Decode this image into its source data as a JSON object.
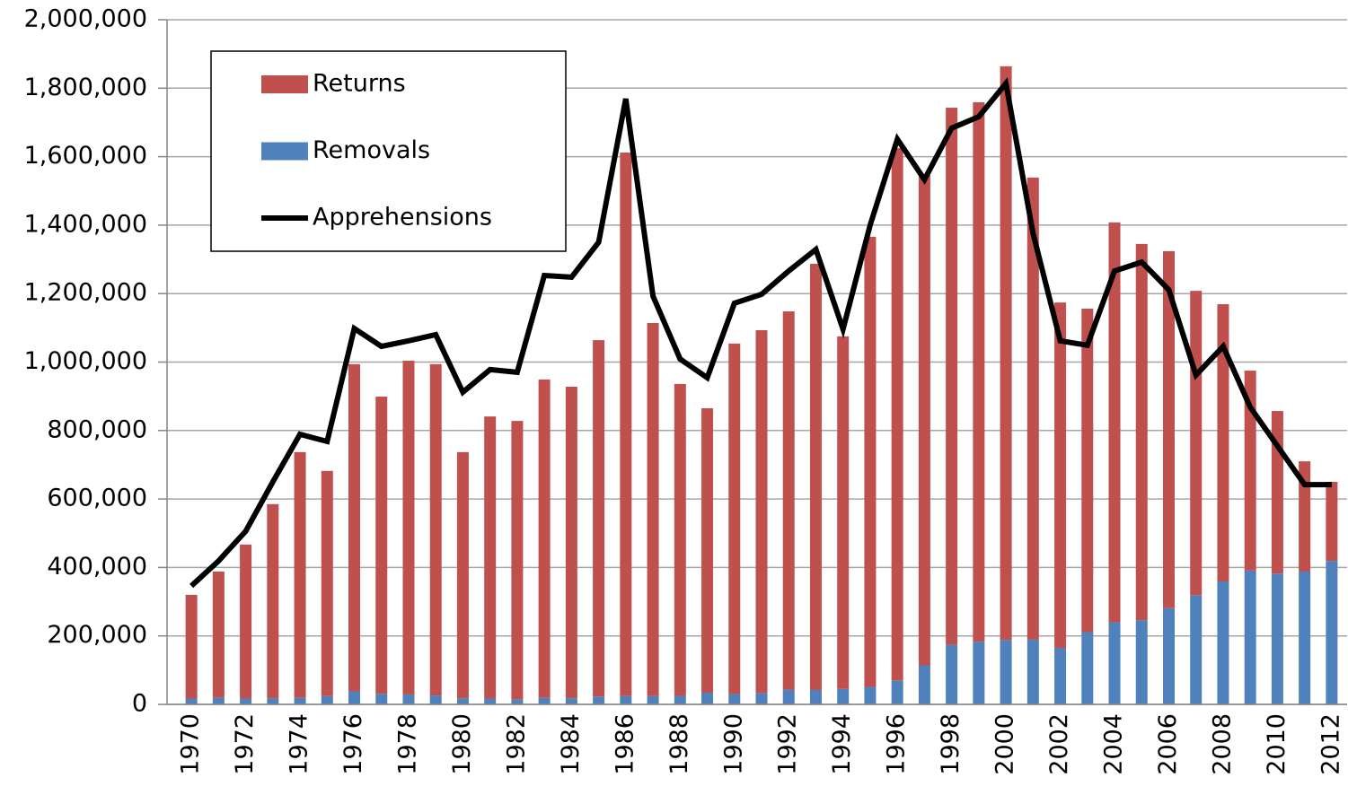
{
  "chart_data": {
    "type": "bar",
    "stacked": true,
    "categories": [
      "1970",
      null,
      "1972",
      null,
      "1974",
      null,
      "1976",
      null,
      "1978",
      null,
      "1980",
      null,
      "1982",
      null,
      "1984",
      null,
      "1986",
      null,
      "1988",
      null,
      "1990",
      null,
      "1992",
      null,
      "1994",
      null,
      "1996",
      null,
      "1998",
      null,
      "2000",
      null,
      "2002",
      null,
      "2004",
      null,
      "2006",
      null,
      "2008",
      null,
      "2010",
      null,
      "2012"
    ],
    "series": [
      {
        "name": "Returns",
        "color": "#c0504d",
        "type": "bar",
        "values": [
          303000,
          368000,
          450000,
          567000,
          718000,
          658000,
          956000,
          868000,
          975000,
          968000,
          719000,
          824000,
          813000,
          930000,
          910000,
          1041000,
          1588000,
          1090000,
          911000,
          831000,
          1024000,
          1060000,
          1105000,
          1245000,
          1030000,
          1315000,
          1555000,
          1433000,
          1569000,
          1576000,
          1676000,
          1350000,
          1009000,
          945000,
          1168000,
          1099000,
          1043000,
          889000,
          810000,
          584000,
          475000,
          322000,
          231000
        ]
      },
      {
        "name": "Removals",
        "color": "#4f81bd",
        "type": "bar",
        "values": [
          17000,
          20000,
          17000,
          18000,
          19000,
          24000,
          38000,
          31000,
          29000,
          26000,
          18000,
          17000,
          15000,
          19000,
          18000,
          23000,
          24000,
          24000,
          25000,
          34000,
          30000,
          33000,
          43000,
          42000,
          45000,
          51000,
          70000,
          114000,
          174000,
          183000,
          188000,
          189000,
          165000,
          211000,
          240000,
          246000,
          281000,
          319000,
          359000,
          391000,
          382000,
          388000,
          419000
        ]
      },
      {
        "name": "Apprehensions",
        "color": "#000000",
        "type": "line",
        "values": [
          346000,
          419000,
          506000,
          650000,
          789000,
          768000,
          1098000,
          1046000,
          1062000,
          1080000,
          912000,
          978000,
          970000,
          1253000,
          1248000,
          1350000,
          1769000,
          1193000,
          1009000,
          954000,
          1172000,
          1198000,
          1266000,
          1329000,
          1096000,
          1400000,
          1651000,
          1533000,
          1683000,
          1717000,
          1814000,
          1376000,
          1062000,
          1049000,
          1266000,
          1292000,
          1211000,
          962000,
          1046000,
          868000,
          755000,
          642000,
          642000
        ]
      }
    ],
    "ylim": [
      0,
      2000000
    ],
    "yticks": [
      0,
      {
        "value": 200000,
        "label": "200,000"
      },
      {
        "value": 400000,
        "label": "400,000"
      },
      {
        "value": 600000,
        "label": "600,000"
      },
      {
        "value": 800000,
        "label": "800,000"
      },
      {
        "value": 1000000,
        "label": "1,000,000"
      },
      {
        "value": 1200000,
        "label": "1,200,000"
      },
      {
        "value": 1400000,
        "label": "1,400,000"
      },
      {
        "value": 1600000,
        "label": "1,600,000"
      },
      {
        "value": 1800000,
        "label": "1,800,000"
      },
      {
        "value": 2000000,
        "label": "2,000,000"
      }
    ],
    "grid": true,
    "legend": "top-left"
  }
}
